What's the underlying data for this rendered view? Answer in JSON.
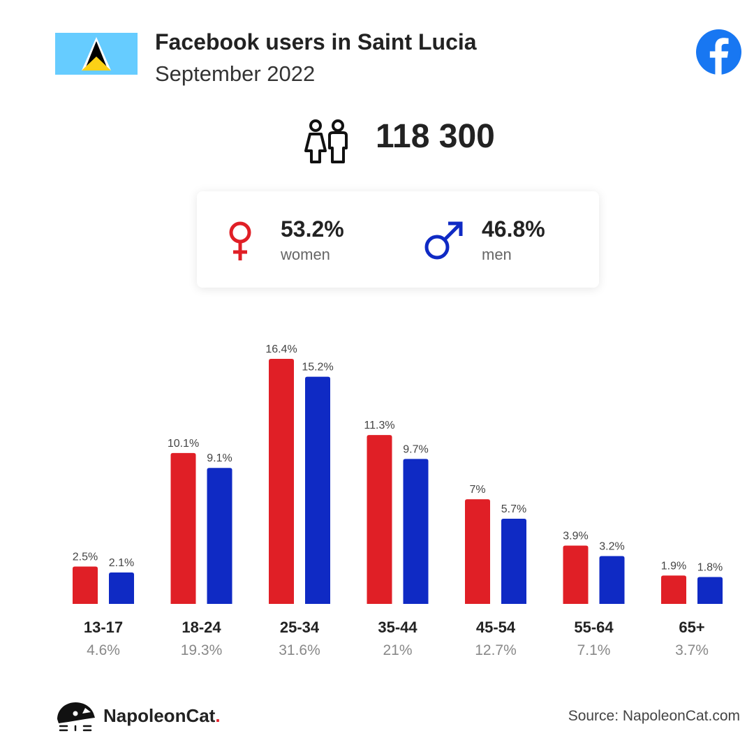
{
  "header": {
    "title": "Facebook users in Saint Lucia",
    "subtitle": "September 2022"
  },
  "summary": {
    "total_users": "118 300",
    "women": {
      "percent": "53.2%",
      "label": "women"
    },
    "men": {
      "percent": "46.8%",
      "label": "men"
    }
  },
  "colors": {
    "women": "#e01f26",
    "men": "#0f2ac4",
    "facebook": "#1877f2",
    "flag_blue": "#66ccff",
    "flag_yellow": "#fcd116"
  },
  "icons": {
    "flag": "saint-lucia-flag-icon",
    "facebook": "facebook-logo-icon",
    "users": "users-icon",
    "female": "female-symbol-icon",
    "male": "male-symbol-icon",
    "brand": "napoleoncat-logo-icon"
  },
  "chart_data": {
    "type": "bar",
    "categories": [
      "13-17",
      "18-24",
      "25-34",
      "35-44",
      "45-54",
      "55-64",
      "65+"
    ],
    "category_totals": [
      "4.6%",
      "19.3%",
      "31.6%",
      "21%",
      "12.7%",
      "7.1%",
      "3.7%"
    ],
    "series": [
      {
        "values": [
          2.5,
          10.1,
          16.4,
          11.3,
          7,
          3.9,
          1.9
        ],
        "labels": [
          "2.5%",
          "10.1%",
          "16.4%",
          "11.3%",
          "7%",
          "3.9%",
          "1.9%"
        ]
      },
      {
        "values": [
          2.1,
          9.1,
          15.2,
          9.7,
          5.7,
          3.2,
          1.8
        ],
        "labels": [
          "2.1%",
          "9.1%",
          "15.2%",
          "9.7%",
          "5.7%",
          "3.2%",
          "1.8%"
        ]
      }
    ],
    "ylim": [
      0,
      16.4
    ],
    "grid": false,
    "legend": "none"
  },
  "footer": {
    "brand_name": "NapoleonCat",
    "brand_dot": ".",
    "source": "Source: NapoleonCat.com"
  }
}
